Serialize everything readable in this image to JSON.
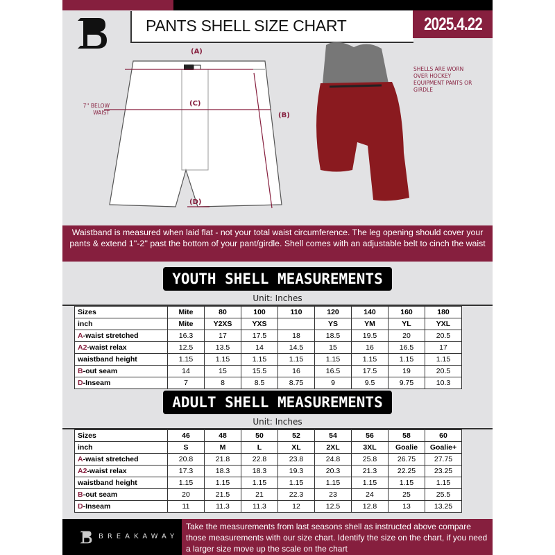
{
  "header": {
    "title": "PANTS SHELL SIZE CHART",
    "date": "2025.4.22",
    "logo_text": "B"
  },
  "diagram": {
    "label_a": "(A)",
    "label_b": "(B)",
    "label_c": "(C)",
    "label_d": "(D)",
    "c_note": "7'' BELOW WAIST",
    "shell_note": "SHELLS ARE WORN OVER HOCKEY EQUIPMENT PANTS OR GIRDLE"
  },
  "banner": "Waistband is measured when laid flat - not your total waist circumference. The leg opening should cover your pants & extend 1''-2'' past the bottom of your pant/girdle. Shell comes with an adjustable belt to cinch the waist",
  "colors": {
    "accent": "#861f3e",
    "dark": "#000000",
    "background": "#e2e2e4"
  },
  "youth": {
    "title": "YOUTH SHELL MEASUREMENTS",
    "unit": "Unit: Inches",
    "rows": [
      {
        "prefix": "",
        "label": "Sizes",
        "values": [
          "Mite",
          "80",
          "100",
          "110",
          "120",
          "140",
          "160",
          "180"
        ]
      },
      {
        "prefix": "",
        "label": "inch",
        "values": [
          "Mite",
          "Y2XS",
          "YXS",
          "",
          "YS",
          "YM",
          "YL",
          "YXL"
        ]
      },
      {
        "prefix": "A",
        "label": "-waist stretched",
        "values": [
          "16.3",
          "17",
          "17.5",
          "18",
          "18.5",
          "19.5",
          "20",
          "20.5"
        ]
      },
      {
        "prefix": "A2",
        "label": "-waist relax",
        "values": [
          "12.5",
          "13.5",
          "14",
          "14.5",
          "15",
          "16",
          "16.5",
          "17"
        ]
      },
      {
        "prefix": "",
        "label": "waistband height",
        "values": [
          "1.15",
          "1.15",
          "1.15",
          "1.15",
          "1.15",
          "1.15",
          "1.15",
          "1.15"
        ]
      },
      {
        "prefix": "B",
        "label": "-out seam",
        "values": [
          "14",
          "15",
          "15.5",
          "16",
          "16.5",
          "17.5",
          "19",
          "20.5"
        ]
      },
      {
        "prefix": "D",
        "label": "-Inseam",
        "values": [
          "7",
          "8",
          "8.5",
          "8.75",
          "9",
          "9.5",
          "9.75",
          "10.3"
        ]
      }
    ]
  },
  "adult": {
    "title": "ADULT SHELL MEASUREMENTS",
    "unit": "Unit: Inches",
    "rows": [
      {
        "prefix": "",
        "label": "Sizes",
        "values": [
          "46",
          "48",
          "50",
          "52",
          "54",
          "56",
          "58",
          "60"
        ]
      },
      {
        "prefix": "",
        "label": "inch",
        "values": [
          "S",
          "M",
          "L",
          "XL",
          "2XL",
          "3XL",
          "Goalie",
          "Goalie+"
        ]
      },
      {
        "prefix": "A",
        "label": "-waist stretched",
        "values": [
          "20.8",
          "21.8",
          "22.8",
          "23.8",
          "24.8",
          "25.8",
          "26.75",
          "27.75"
        ]
      },
      {
        "prefix": "A2",
        "label": "-waist relax",
        "values": [
          "17.3",
          "18.3",
          "18.3",
          "19.3",
          "20.3",
          "21.3",
          "22.25",
          "23.25"
        ]
      },
      {
        "prefix": "",
        "label": "waistband height",
        "values": [
          "1.15",
          "1.15",
          "1.15",
          "1.15",
          "1.15",
          "1.15",
          "1.15",
          "1.15"
        ]
      },
      {
        "prefix": "B",
        "label": "-out seam",
        "values": [
          "20",
          "21.5",
          "21",
          "22.3",
          "23",
          "24",
          "25",
          "25.5"
        ]
      },
      {
        "prefix": "D",
        "label": "-Inseam",
        "values": [
          "11",
          "11.3",
          "11.3",
          "12",
          "12.5",
          "12.8",
          "13",
          "13.25"
        ]
      }
    ]
  },
  "footer": {
    "brand": "BREAKAWAY",
    "text": "Take the measurements from last seasons shell as instructed above compare those measurements  with our size chart. Identify the size on the chart, if you need a larger size move up the scale on the chart"
  }
}
